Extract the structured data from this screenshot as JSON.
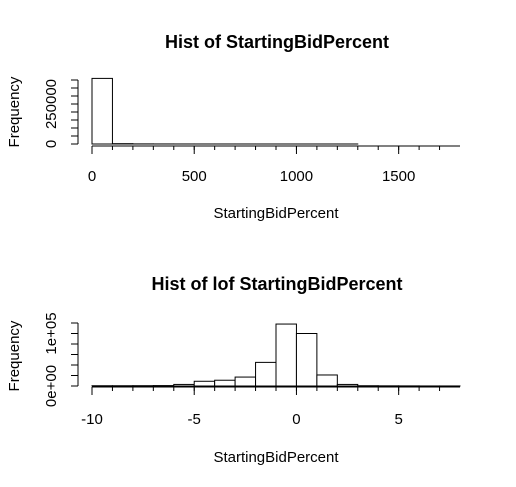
{
  "chart_data": [
    {
      "type": "bar",
      "title": "Hist of StartingBidPercent",
      "xlabel": "StartingBidPercent",
      "ylabel": "Frequency",
      "xlim": [
        0,
        1800
      ],
      "ylim": [
        0,
        400000
      ],
      "x_ticks": [
        0,
        500,
        1000,
        1500
      ],
      "x_tick_labels": [
        "0",
        "500",
        "1000",
        "1500"
      ],
      "y_ticks": [
        0,
        250000
      ],
      "y_tick_labels": [
        "0",
        "250000"
      ],
      "y_minor_ticks": [
        0,
        50000,
        100000,
        150000,
        200000,
        250000,
        300000,
        350000,
        400000
      ],
      "bin_width": 100,
      "bins": [
        {
          "x0": 0,
          "x1": 100,
          "count": 410000
        },
        {
          "x0": 100,
          "x1": 200,
          "count": 2000
        },
        {
          "x0": 200,
          "x1": 300,
          "count": 600
        },
        {
          "x0": 300,
          "x1": 400,
          "count": 300
        },
        {
          "x0": 400,
          "x1": 500,
          "count": 200
        },
        {
          "x0": 500,
          "x1": 600,
          "count": 150
        },
        {
          "x0": 600,
          "x1": 700,
          "count": 120
        },
        {
          "x0": 700,
          "x1": 800,
          "count": 100
        },
        {
          "x0": 800,
          "x1": 900,
          "count": 80
        },
        {
          "x0": 900,
          "x1": 1000,
          "count": 70
        },
        {
          "x0": 1000,
          "x1": 1100,
          "count": 60
        },
        {
          "x0": 1100,
          "x1": 1200,
          "count": 50
        },
        {
          "x0": 1200,
          "x1": 1300,
          "count": 40
        },
        {
          "x0": 1300,
          "x1": 1400,
          "count": 30
        },
        {
          "x0": 1400,
          "x1": 1500,
          "count": 20
        },
        {
          "x0": 1500,
          "x1": 1600,
          "count": 20
        },
        {
          "x0": 1600,
          "x1": 1700,
          "count": 10
        },
        {
          "x0": 1700,
          "x1": 1800,
          "count": 10
        }
      ],
      "grid": false
    },
    {
      "type": "bar",
      "title": "Hist of lof StartingBidPercent",
      "xlabel": "StartingBidPercent",
      "ylabel": "Frequency",
      "xlim": [
        -10,
        8
      ],
      "ylim": [
        0,
        120000
      ],
      "x_ticks": [
        -10,
        -5,
        0,
        5
      ],
      "x_tick_labels": [
        "-10",
        "-5",
        "0",
        "5"
      ],
      "y_ticks": [
        0,
        100000
      ],
      "y_tick_labels": [
        "0e+00",
        "1e+05"
      ],
      "y_minor_ticks": [
        0,
        20000,
        40000,
        60000,
        80000,
        100000,
        120000
      ],
      "bin_width": 1,
      "bins": [
        {
          "x0": -10,
          "x1": -9,
          "count": 500
        },
        {
          "x0": -9,
          "x1": -8,
          "count": 500
        },
        {
          "x0": -8,
          "x1": -7,
          "count": 600
        },
        {
          "x0": -7,
          "x1": -6,
          "count": 800
        },
        {
          "x0": -6,
          "x1": -5,
          "count": 3000
        },
        {
          "x0": -5,
          "x1": -4,
          "count": 9000
        },
        {
          "x0": -4,
          "x1": -3,
          "count": 11000
        },
        {
          "x0": -3,
          "x1": -2,
          "count": 17000
        },
        {
          "x0": -2,
          "x1": -1,
          "count": 45000
        },
        {
          "x0": -1,
          "x1": 0,
          "count": 118000
        },
        {
          "x0": 0,
          "x1": 1,
          "count": 100000
        },
        {
          "x0": 1,
          "x1": 2,
          "count": 21000
        },
        {
          "x0": 2,
          "x1": 3,
          "count": 3000
        },
        {
          "x0": 3,
          "x1": 4,
          "count": 500
        },
        {
          "x0": 4,
          "x1": 5,
          "count": 300
        },
        {
          "x0": 5,
          "x1": 6,
          "count": 200
        },
        {
          "x0": 6,
          "x1": 7,
          "count": 100
        },
        {
          "x0": 7,
          "x1": 8,
          "count": 100
        }
      ],
      "grid": false
    }
  ]
}
